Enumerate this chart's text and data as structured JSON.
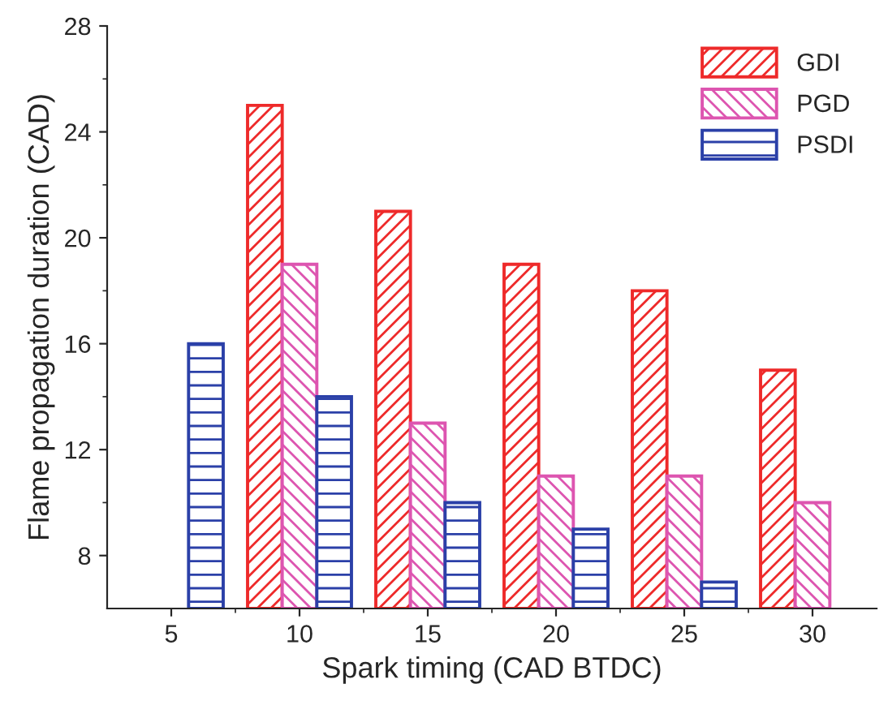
{
  "chart_data": {
    "type": "bar",
    "xlabel": "Spark timing (CAD BTDC)",
    "ylabel": "Flame propagation duration (CAD)",
    "categories": [
      "5",
      "10",
      "15",
      "20",
      "25",
      "30"
    ],
    "series": [
      {
        "name": "GDI",
        "color": "#ee2a2a",
        "values": [
          null,
          25,
          21,
          19,
          18,
          15
        ]
      },
      {
        "name": "PGD",
        "color": "#dd55b0",
        "values": [
          null,
          19,
          13,
          11,
          11,
          10
        ]
      },
      {
        "name": "PSDI",
        "color": "#2b40a8",
        "values": [
          16,
          14,
          10,
          9,
          7,
          null
        ]
      }
    ],
    "ylim": [
      6,
      28
    ],
    "yticks": [
      8,
      12,
      16,
      20,
      24,
      28
    ],
    "grid": false,
    "legend": "top right"
  }
}
